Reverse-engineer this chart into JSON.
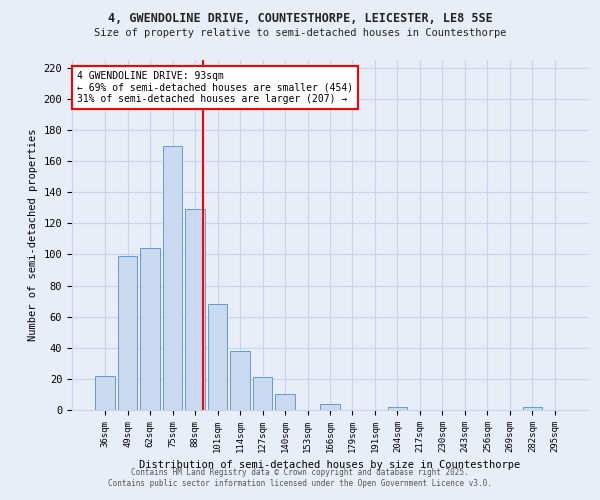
{
  "title1": "4, GWENDOLINE DRIVE, COUNTESTHORPE, LEICESTER, LE8 5SE",
  "title2": "Size of property relative to semi-detached houses in Countesthorpe",
  "xlabel": "Distribution of semi-detached houses by size in Countesthorpe",
  "ylabel": "Number of semi-detached properties",
  "categories": [
    "36sqm",
    "49sqm",
    "62sqm",
    "75sqm",
    "88sqm",
    "101sqm",
    "114sqm",
    "127sqm",
    "140sqm",
    "153sqm",
    "166sqm",
    "179sqm",
    "191sqm",
    "204sqm",
    "217sqm",
    "230sqm",
    "243sqm",
    "256sqm",
    "269sqm",
    "282sqm",
    "295sqm"
  ],
  "values": [
    22,
    99,
    104,
    170,
    129,
    68,
    38,
    21,
    10,
    0,
    4,
    0,
    0,
    2,
    0,
    0,
    0,
    0,
    0,
    2,
    0
  ],
  "bar_color": "#c9d9f0",
  "bar_edge_color": "#6699cc",
  "grid_color": "#c8d4e8",
  "background_color": "#e8eef8",
  "vline_x_index": 4.35,
  "vline_color": "red",
  "annotation_text": "4 GWENDOLINE DRIVE: 93sqm\n← 69% of semi-detached houses are smaller (454)\n31% of semi-detached houses are larger (207) →",
  "annotation_box_color": "white",
  "annotation_box_edge": "red",
  "ylim": [
    0,
    225
  ],
  "yticks": [
    0,
    20,
    40,
    60,
    80,
    100,
    120,
    140,
    160,
    180,
    200,
    220
  ],
  "footer1": "Contains HM Land Registry data © Crown copyright and database right 2025.",
  "footer2": "Contains public sector information licensed under the Open Government Licence v3.0."
}
